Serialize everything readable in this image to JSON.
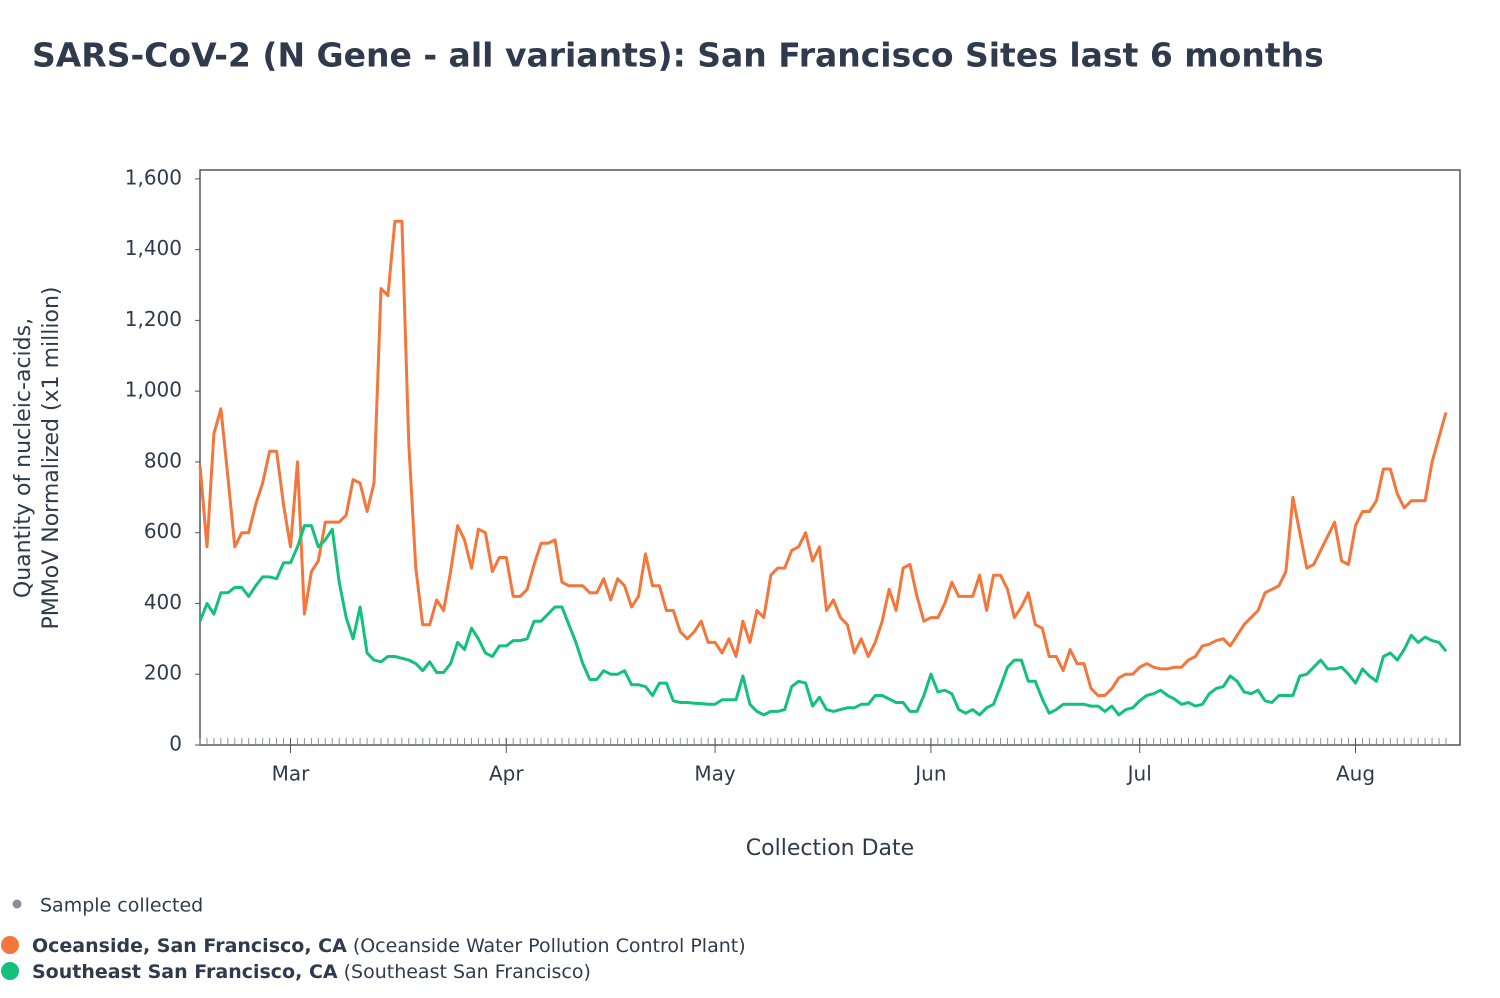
{
  "chart_data": {
    "type": "line",
    "title": "SARS-CoV-2 (N Gene - all variants): San Francisco Sites last 6 months",
    "xlabel": "Collection Date",
    "ylabel": [
      "Quantity of nucleic-acids,",
      "PMMoV Normalized (x1 million)"
    ],
    "marker_legend": "Sample collected",
    "categories": [
      null,
      null,
      null,
      null,
      null,
      null,
      null,
      null,
      null,
      null,
      null,
      null,
      null,
      "Mar",
      null,
      null,
      null,
      null,
      null,
      null,
      null,
      null,
      null,
      null,
      null,
      null,
      null,
      null,
      null,
      null,
      null,
      null,
      null,
      null,
      null,
      null,
      null,
      null,
      null,
      null,
      null,
      null,
      null,
      null,
      "Apr",
      null,
      null,
      null,
      null,
      null,
      null,
      null,
      null,
      null,
      null,
      null,
      null,
      null,
      null,
      null,
      null,
      null,
      null,
      null,
      null,
      null,
      null,
      null,
      null,
      null,
      null,
      null,
      null,
      null,
      "May",
      null,
      null,
      null,
      null,
      null,
      null,
      null,
      null,
      null,
      null,
      null,
      null,
      null,
      null,
      null,
      null,
      null,
      null,
      null,
      null,
      null,
      null,
      null,
      null,
      null,
      null,
      null,
      null,
      null,
      null,
      "Jun",
      null,
      null,
      null,
      null,
      null,
      null,
      null,
      null,
      null,
      null,
      null,
      null,
      null,
      null,
      null,
      null,
      null,
      null,
      null,
      null,
      null,
      null,
      null,
      null,
      null,
      null,
      null,
      null,
      null,
      "Jul",
      null,
      null,
      null,
      null,
      null,
      null,
      null,
      null,
      null,
      null,
      null,
      null,
      null,
      null,
      null,
      null,
      null,
      null,
      null,
      null,
      null,
      null,
      null,
      null,
      null,
      null,
      null,
      null,
      null,
      null,
      "Aug",
      null,
      null,
      null,
      null,
      null,
      null,
      null,
      null,
      null,
      null,
      null,
      null,
      null
    ],
    "series": [
      {
        "name": "Oceanside, San Francisco, CA",
        "site": "(Oceanside Water Pollution Control Plant)",
        "color": "#f4763b",
        "values": [
          790,
          560,
          880,
          950,
          760,
          560,
          600,
          600,
          680,
          740,
          830,
          830,
          680,
          560,
          800,
          370,
          490,
          520,
          630,
          630,
          630,
          650,
          750,
          740,
          660,
          740,
          1290,
          1270,
          1480,
          1480,
          850,
          500,
          340,
          340,
          410,
          380,
          490,
          620,
          580,
          500,
          610,
          600,
          490,
          530,
          530,
          420,
          420,
          440,
          510,
          570,
          570,
          580,
          460,
          450,
          450,
          450,
          430,
          430,
          470,
          410,
          470,
          450,
          390,
          420,
          540,
          450,
          450,
          380,
          380,
          320,
          300,
          320,
          350,
          290,
          290,
          260,
          300,
          250,
          350,
          290,
          380,
          360,
          480,
          500,
          500,
          550,
          560,
          600,
          520,
          560,
          380,
          410,
          360,
          340,
          260,
          300,
          250,
          290,
          350,
          440,
          380,
          500,
          510,
          420,
          350,
          360,
          360,
          400,
          460,
          420,
          420,
          420,
          480,
          380,
          480,
          480,
          440,
          360,
          390,
          430,
          340,
          330,
          250,
          250,
          210,
          270,
          230,
          230,
          160,
          140,
          140,
          160,
          190,
          200,
          200,
          220,
          230,
          220,
          215,
          215,
          220,
          220,
          240,
          250,
          280,
          285,
          295,
          300,
          280,
          310,
          340,
          360,
          380,
          430,
          440,
          450,
          490,
          700,
          600,
          500,
          510,
          550,
          590,
          630,
          520,
          510,
          620,
          660,
          660,
          690,
          780,
          780,
          710,
          670,
          690,
          690,
          690,
          800,
          870,
          940
        ]
      },
      {
        "name": "Southeast San Francisco, CA",
        "site": "(Southeast San Francisco)",
        "color": "#13c17a",
        "values": [
          350,
          400,
          370,
          430,
          430,
          445,
          445,
          420,
          450,
          475,
          475,
          470,
          515,
          515,
          560,
          620,
          620,
          560,
          580,
          610,
          460,
          360,
          300,
          390,
          260,
          240,
          235,
          250,
          250,
          245,
          240,
          230,
          210,
          235,
          205,
          205,
          230,
          290,
          270,
          330,
          300,
          260,
          250,
          280,
          280,
          295,
          295,
          300,
          350,
          350,
          370,
          390,
          390,
          340,
          290,
          230,
          185,
          185,
          210,
          200,
          200,
          210,
          170,
          170,
          165,
          140,
          175,
          175,
          125,
          120,
          120,
          118,
          117,
          115,
          115,
          128,
          128,
          128,
          195,
          115,
          95,
          85,
          95,
          95,
          100,
          165,
          180,
          175,
          110,
          135,
          100,
          95,
          100,
          105,
          105,
          115,
          115,
          140,
          140,
          130,
          120,
          120,
          95,
          95,
          140,
          200,
          150,
          155,
          145,
          100,
          90,
          100,
          85,
          105,
          115,
          165,
          220,
          240,
          240,
          180,
          180,
          130,
          90,
          100,
          115,
          115,
          115,
          115,
          110,
          110,
          95,
          110,
          85,
          100,
          105,
          125,
          140,
          145,
          155,
          140,
          130,
          115,
          120,
          110,
          115,
          145,
          160,
          165,
          195,
          180,
          150,
          145,
          155,
          125,
          120,
          140,
          140,
          140,
          195,
          200,
          220,
          240,
          215,
          215,
          220,
          200,
          175,
          215,
          195,
          180,
          250,
          260,
          240,
          270,
          310,
          290,
          305,
          295,
          290,
          265
        ]
      }
    ],
    "ylim": [
      0,
      1625
    ],
    "yticks": [
      0,
      200,
      400,
      600,
      800,
      {
        "value": 1000,
        "label": "1,000"
      },
      {
        "value": 1200,
        "label": "1,200"
      },
      {
        "value": 1400,
        "label": "1,400"
      },
      {
        "value": 1600,
        "label": "1,600"
      }
    ],
    "grid": false
  }
}
